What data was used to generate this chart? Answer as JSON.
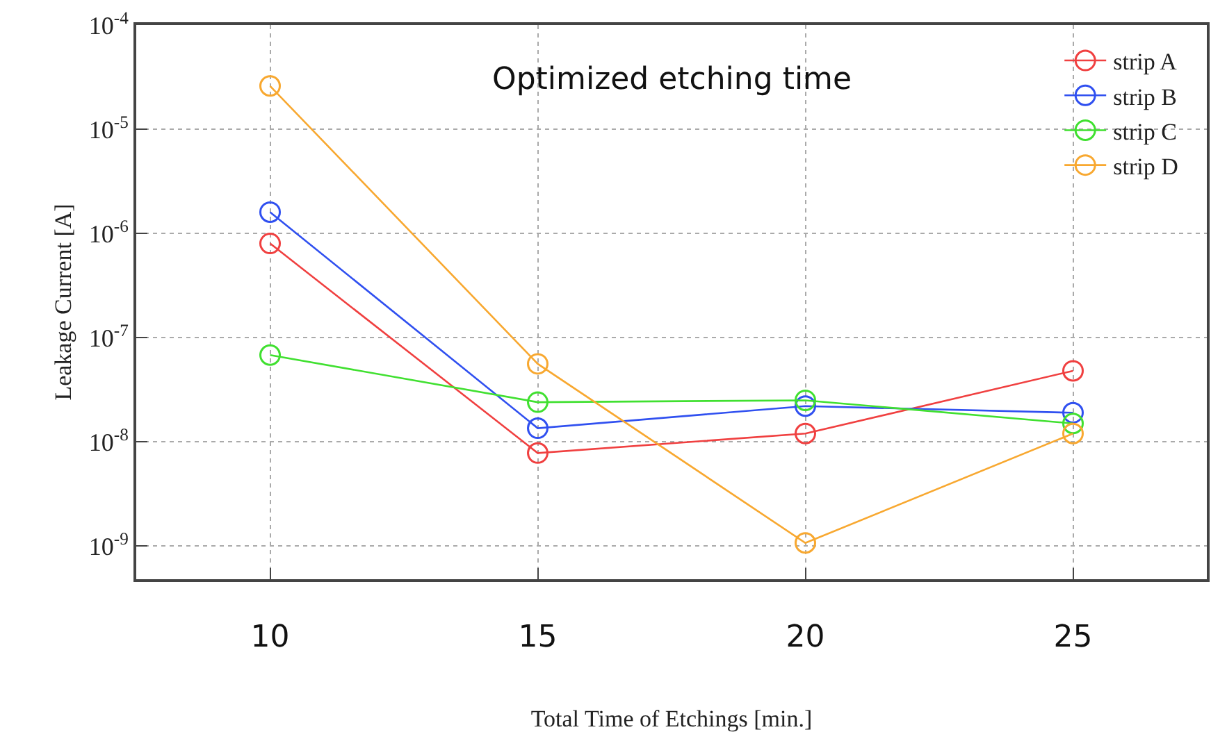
{
  "chart_data": {
    "type": "line",
    "xlabel": "Total Time of Etchings [min.]",
    "ylabel": "Leakage Current [A]",
    "x": [
      10,
      15,
      20,
      25
    ],
    "series": [
      {
        "name": "strip A",
        "color": "#f04040",
        "values": [
          8e-07,
          7.8e-09,
          1.2e-08,
          4.8e-08
        ]
      },
      {
        "name": "strip B",
        "color": "#3050f0",
        "values": [
          1.6e-06,
          1.35e-08,
          2.2e-08,
          1.9e-08
        ]
      },
      {
        "name": "strip C",
        "color": "#40e030",
        "values": [
          6.8e-08,
          2.4e-08,
          2.5e-08,
          1.5e-08
        ]
      },
      {
        "name": "strip D",
        "color": "#f8a830",
        "values": [
          2.6e-05,
          5.6e-08,
          1.07e-09,
          1.2e-08
        ]
      }
    ],
    "xlim": [
      7.5,
      27.5
    ],
    "xticks": [
      10,
      15,
      20,
      25
    ],
    "ylim": [
      4.8e-10,
      0.0001
    ],
    "yticks": [
      {
        "value": 1e-09,
        "label": "10$^{-9}$"
      },
      {
        "value": 1e-08,
        "label": "10$^{-8}$"
      },
      {
        "value": 1e-07,
        "label": "10$^{-7}$"
      },
      {
        "value": 1e-06,
        "label": "10$^{-6}$"
      },
      {
        "value": 1e-05,
        "label": "10$^{-5}$"
      },
      {
        "value": 0.0001,
        "label": "10$^{-4}$"
      }
    ],
    "log": "y",
    "grid": true,
    "legend": "top right",
    "marker": "circle",
    "line_style": "solid",
    "annotations": [
      "Optimized etching time"
    ]
  }
}
